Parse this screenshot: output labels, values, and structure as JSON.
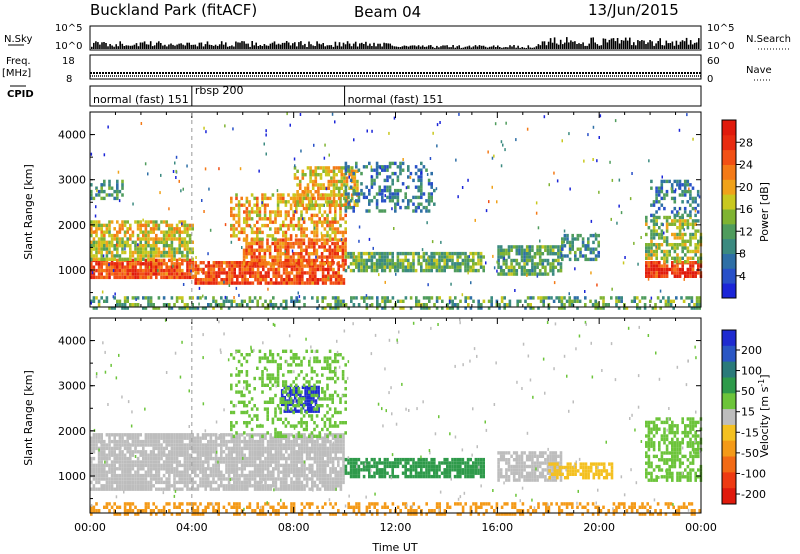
{
  "header": {
    "station": "Buckland Park (fitACF)",
    "beam": "Beam 04",
    "date": "13/Jun/2015"
  },
  "summary_panel": {
    "nsky_label": "N.Sky",
    "nsearch_label": "N.Search",
    "nsky_ticks": [
      "10^5",
      "10^0"
    ],
    "nsearch_ticks": [
      "10^5",
      "10^0"
    ],
    "freq_label": "Freq.",
    "freq_unit": "[MHz]",
    "freq_ticks": [
      "18",
      "8"
    ],
    "nave_label": "Nave",
    "nave_ticks": [
      "60",
      "0"
    ],
    "cpid_label": "CPID"
  },
  "cpid_segments": [
    {
      "label": "normal (fast) 151",
      "start_hour": 0,
      "end_hour": 4.0
    },
    {
      "label": "rbsp 200",
      "start_hour": 4.0,
      "end_hour": 10.0
    },
    {
      "label": "normal (fast) 151",
      "start_hour": 10.0,
      "end_hour": 24.0
    }
  ],
  "chart_data": [
    {
      "type": "heatmap",
      "parameter": "power",
      "xlabel": "Time UT",
      "ylabel": "Slant Range [km]",
      "x_ticks": [
        "00:00",
        "04:00",
        "08:00",
        "12:00",
        "16:00",
        "20:00",
        "00:00"
      ],
      "xlim": [
        0,
        24
      ],
      "ylim": [
        180,
        4500
      ],
      "y_ticks": [
        1000,
        2000,
        3000,
        4000
      ],
      "colorbar": {
        "label": "Power [dB]",
        "range": [
          0,
          32
        ],
        "ticks": [
          4,
          8,
          12,
          16,
          20,
          24,
          28
        ],
        "colors": [
          "#1b25d8",
          "#2850c8",
          "#2e6fa6",
          "#3b8a80",
          "#4f9c5d",
          "#7fb332",
          "#c9c81f",
          "#f0a21a",
          "#f47a17",
          "#f25015",
          "#e82b10",
          "#e01a0c"
        ]
      },
      "regions": [
        {
          "t0": 0.0,
          "t1": 4.0,
          "r0": 800,
          "r1": 1250,
          "level": 26,
          "density": 0.9
        },
        {
          "t0": 0.0,
          "t1": 4.0,
          "r0": 1250,
          "r1": 1650,
          "level": 16,
          "density": 0.8
        },
        {
          "t0": 0.0,
          "t1": 4.0,
          "r0": 1650,
          "r1": 2100,
          "level": 18,
          "density": 0.75
        },
        {
          "t0": 0.0,
          "t1": 1.3,
          "r0": 2550,
          "r1": 3000,
          "level": 10,
          "density": 0.45
        },
        {
          "t0": 4.0,
          "t1": 10.0,
          "r0": 700,
          "r1": 1200,
          "level": 26,
          "density": 0.8
        },
        {
          "t0": 6.0,
          "t1": 10.0,
          "r0": 1150,
          "r1": 1700,
          "level": 24,
          "density": 0.75
        },
        {
          "t0": 5.5,
          "t1": 10.0,
          "r0": 1700,
          "r1": 2700,
          "level": 20,
          "density": 0.55
        },
        {
          "t0": 8.0,
          "t1": 10.5,
          "r0": 2400,
          "r1": 3300,
          "level": 19,
          "density": 0.6
        },
        {
          "t0": 10.0,
          "t1": 13.5,
          "r0": 2300,
          "r1": 3400,
          "level": 8,
          "density": 0.35
        },
        {
          "t0": 10.0,
          "t1": 15.5,
          "r0": 1000,
          "r1": 1400,
          "level": 13,
          "density": 0.75
        },
        {
          "t0": 16.0,
          "t1": 18.5,
          "r0": 900,
          "r1": 1550,
          "level": 12,
          "density": 0.75
        },
        {
          "t0": 18.5,
          "t1": 20.0,
          "r0": 1250,
          "r1": 1800,
          "level": 10,
          "density": 0.6
        },
        {
          "t0": 21.8,
          "t1": 24.0,
          "r0": 850,
          "r1": 1200,
          "level": 27,
          "density": 0.85
        },
        {
          "t0": 21.8,
          "t1": 24.0,
          "r0": 1200,
          "r1": 2200,
          "level": 15,
          "density": 0.6
        },
        {
          "t0": 22.0,
          "t1": 24.0,
          "r0": 2200,
          "r1": 3000,
          "level": 8,
          "density": 0.35
        },
        {
          "t0": 0.0,
          "t1": 24.0,
          "r0": 190,
          "r1": 420,
          "level": 12,
          "density": 0.45
        }
      ]
    },
    {
      "type": "heatmap",
      "parameter": "velocity",
      "xlabel": "Time UT",
      "ylabel": "Slant Range [km]",
      "x_ticks": [
        "00:00",
        "04:00",
        "08:00",
        "12:00",
        "16:00",
        "20:00",
        "00:00"
      ],
      "xlim": [
        0,
        24
      ],
      "ylim": [
        180,
        4500
      ],
      "y_ticks": [
        1000,
        2000,
        3000,
        4000
      ],
      "colorbar": {
        "label": "Velocity [m s",
        "label_sup": "-1",
        "label_end": "]",
        "tick_labels": [
          "200",
          "100",
          "50",
          "15",
          "-15",
          "-50",
          "-100",
          "-200"
        ],
        "colors": [
          "#1f2bd0",
          "#2a56c4",
          "#2a7a7a",
          "#2e9a4a",
          "#6cc43a",
          "#bdbdbd",
          "#bdbdbd",
          "#f4c020",
          "#f49a18",
          "#f26a15",
          "#ee3a12",
          "#e01a0c"
        ]
      },
      "regions": [
        {
          "t0": 0.0,
          "t1": 10.0,
          "r0": 700,
          "r1": 1950,
          "level": 0,
          "density": 0.85
        },
        {
          "t0": 10.0,
          "t1": 15.5,
          "r0": 1000,
          "r1": 1400,
          "level": 70,
          "density": 0.8
        },
        {
          "t0": 16.0,
          "t1": 18.5,
          "r0": 900,
          "r1": 1550,
          "level": 0,
          "density": 0.75
        },
        {
          "t0": 18.0,
          "t1": 20.5,
          "r0": 950,
          "r1": 1300,
          "level": -40,
          "density": 0.7
        },
        {
          "t0": 7.5,
          "t1": 9.0,
          "r0": 2450,
          "r1": 3000,
          "level": 180,
          "density": 0.75
        },
        {
          "t0": 5.5,
          "t1": 10.0,
          "r0": 1900,
          "r1": 3800,
          "level": 20,
          "density": 0.3
        },
        {
          "t0": 21.8,
          "t1": 24.0,
          "r0": 900,
          "r1": 2300,
          "level": 45,
          "density": 0.55
        },
        {
          "t0": 0.0,
          "t1": 24.0,
          "r0": 190,
          "r1": 420,
          "level": -60,
          "density": 0.45
        }
      ]
    }
  ]
}
